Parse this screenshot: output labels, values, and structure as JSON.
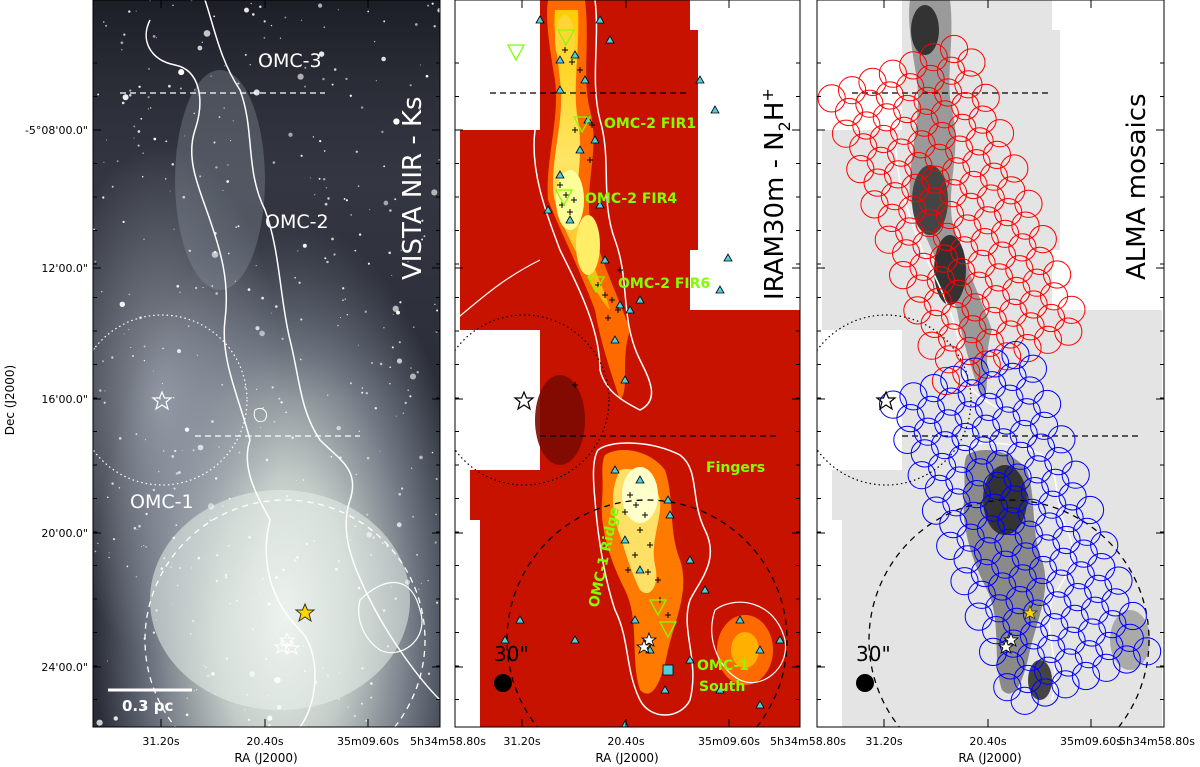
{
  "axes": {
    "ylabel": "Dec (J2000)",
    "xlabel": "RA (J2000)",
    "yticks": [
      "-5°08'00.0\"",
      "12'00.0\"",
      "16'00.0\"",
      "20'00.0\"",
      "24'00.0\""
    ],
    "xticks": [
      "31.20s",
      "20.40s",
      "35m09.60s",
      "5h34m58.80s"
    ]
  },
  "panels": [
    {
      "title": "VISTA NIR - Ks",
      "labels": [
        "OMC-3",
        "OMC-2",
        "OMC-1"
      ],
      "scalebar": "0.3 pc"
    },
    {
      "title_main": "IRAM30m - N",
      "title_sub": "2",
      "title_end": "H",
      "title_sup": "+",
      "labels": [
        "OMC-2 FIR1",
        "OMC-2 FIR4",
        "OMC-2 FIR6",
        "Fingers",
        "OMC-1 Ridge",
        "OMC-1",
        "South"
      ],
      "beam": "30\""
    },
    {
      "title": "ALMA mosaics",
      "beam": "30\""
    }
  ],
  "colors": {
    "label_green": "#80ff00",
    "mosaic_red": "#ff0000",
    "mosaic_blue": "#0000ff",
    "contour": "#ffffff"
  }
}
